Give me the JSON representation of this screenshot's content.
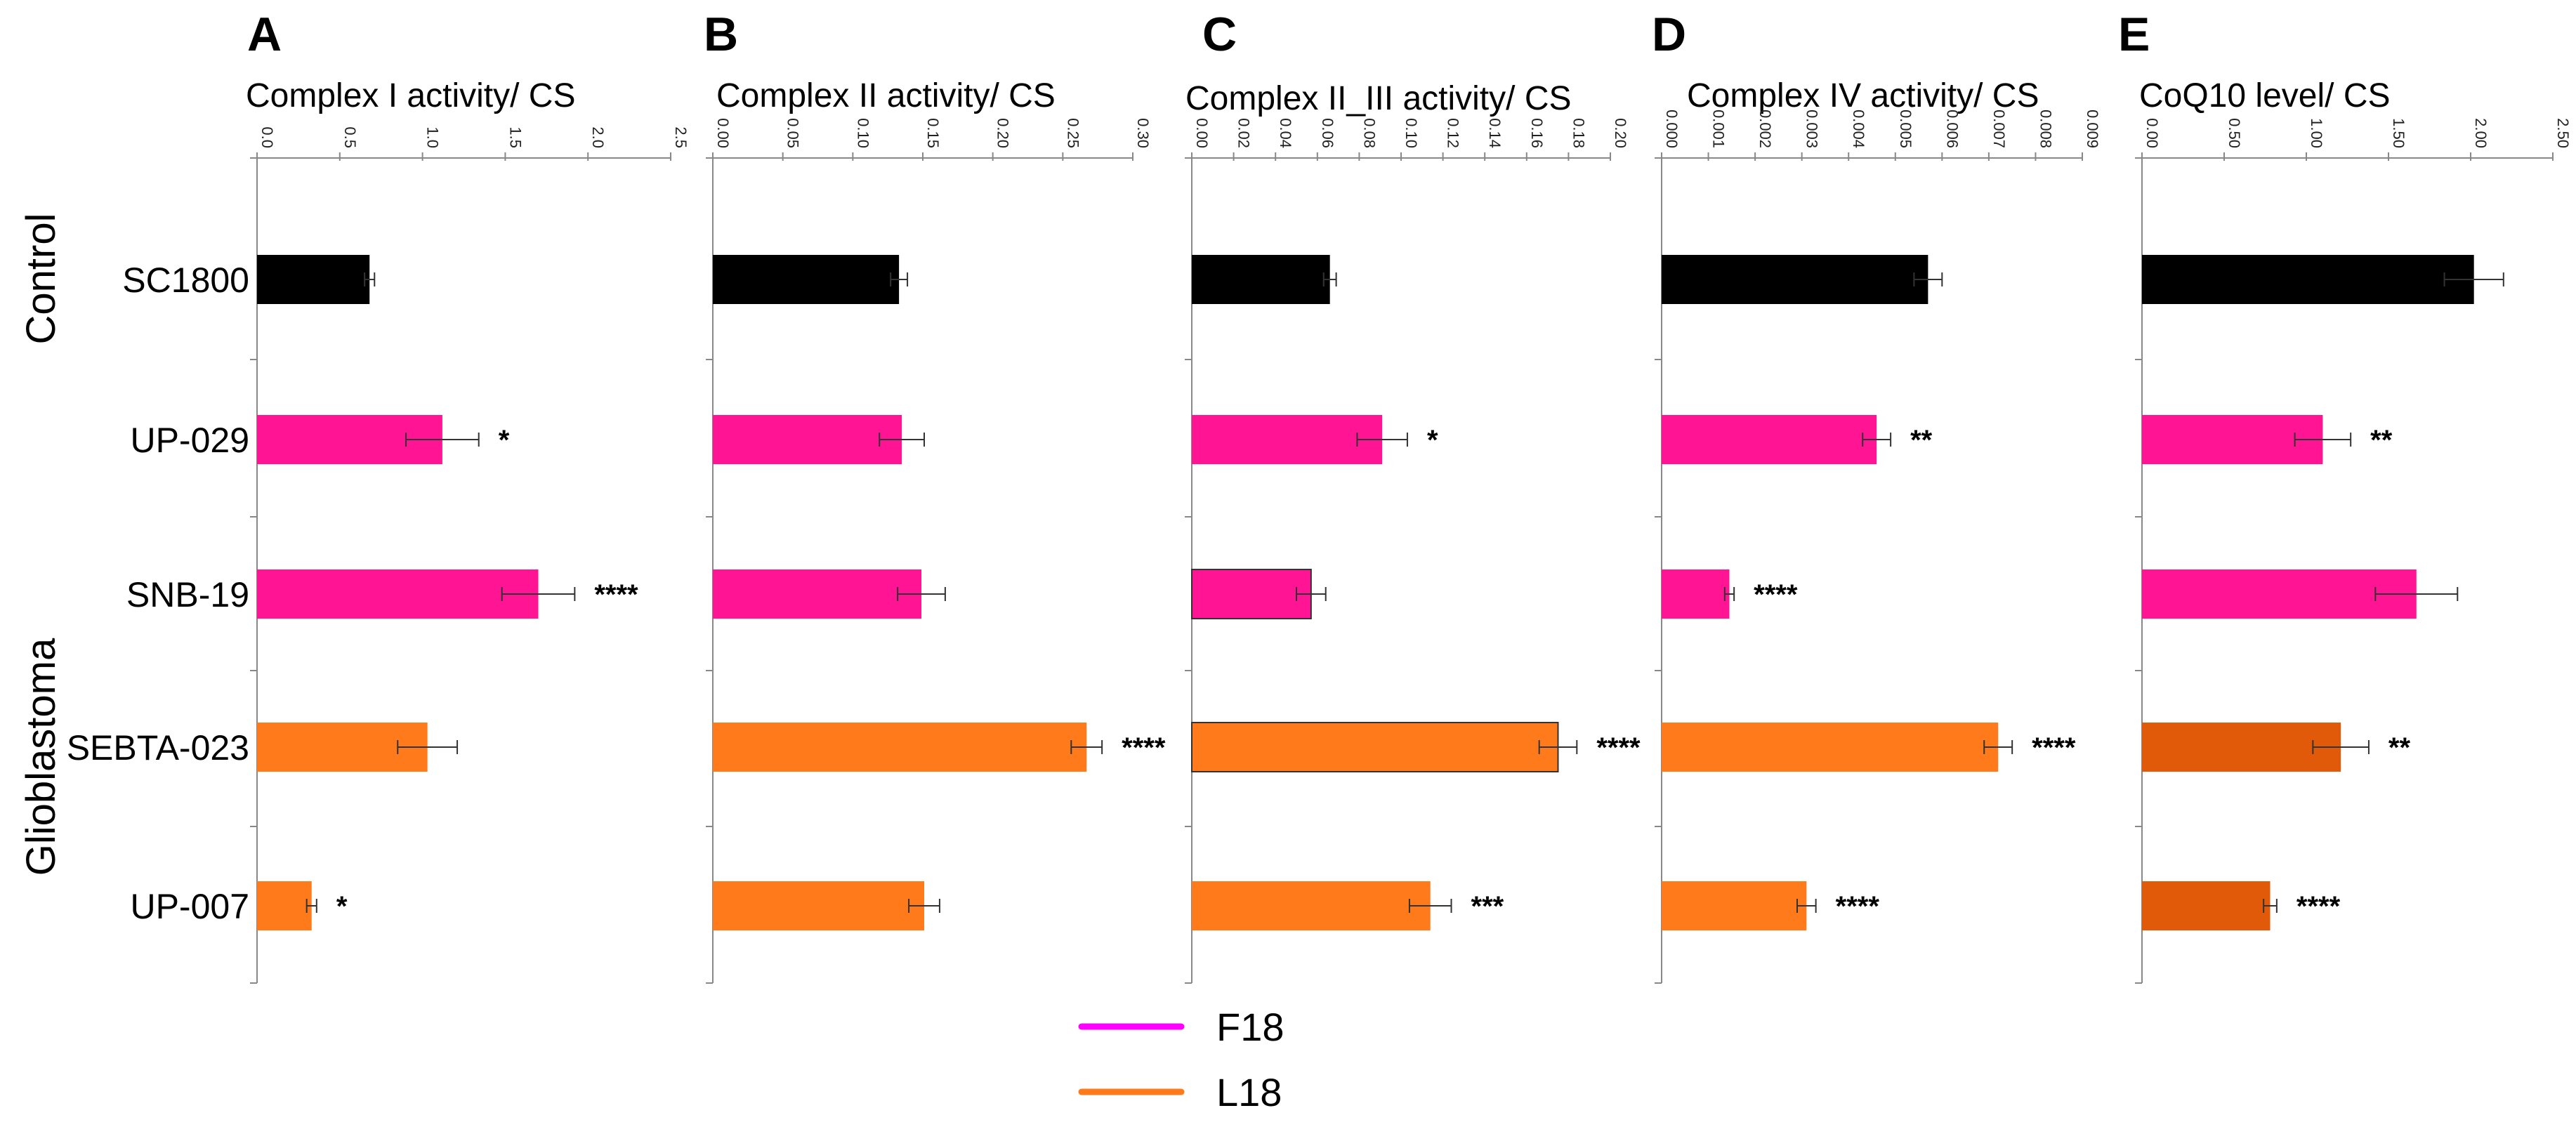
{
  "figure": {
    "group_labels": {
      "control": "Control",
      "glioblastoma": "Glioblastoma"
    },
    "legend": [
      {
        "label": "F18",
        "color": "#ff00ff"
      },
      {
        "label": "L18",
        "color": "#ff7a1a"
      }
    ]
  },
  "chart_data": [
    {
      "type": "bar",
      "orientation": "horizontal",
      "panel": "A",
      "title": "Complex I activity/ CS",
      "categories": [
        "SC1800",
        "UP-029",
        "SNB-19",
        "SEBTA-023",
        "UP-007"
      ],
      "values": [
        0.68,
        1.12,
        1.7,
        1.03,
        0.33
      ],
      "errors": [
        0.03,
        0.22,
        0.22,
        0.18,
        0.03
      ],
      "significance": [
        "",
        "*",
        "****",
        "",
        "*"
      ],
      "colors": [
        "#000000",
        "#ff1493",
        "#ff1493",
        "#ff7a1a",
        "#ff7a1a"
      ],
      "xlim": [
        0,
        2.5
      ],
      "ticks": [
        0,
        0.5,
        1.0,
        1.5,
        2.0,
        2.5
      ],
      "tick_labels": [
        "0.0",
        "0.5",
        "1.0",
        "1.5",
        "2.0",
        "2.5"
      ]
    },
    {
      "type": "bar",
      "orientation": "horizontal",
      "panel": "B",
      "title": "Complex II activity/ CS",
      "categories": [
        "SC1800",
        "UP-029",
        "SNB-19",
        "SEBTA-023",
        "UP-007"
      ],
      "values": [
        0.133,
        0.135,
        0.149,
        0.267,
        0.151
      ],
      "errors": [
        0.006,
        0.016,
        0.017,
        0.011,
        0.011
      ],
      "significance": [
        "",
        "",
        "",
        "****",
        ""
      ],
      "colors": [
        "#000000",
        "#ff1493",
        "#ff1493",
        "#ff7a1a",
        "#ff7a1a"
      ],
      "xlim": [
        0,
        0.3
      ],
      "ticks": [
        0,
        0.05,
        0.1,
        0.15,
        0.2,
        0.25,
        0.3
      ],
      "tick_labels": [
        "0.00",
        "0.05",
        "0.10",
        "0.15",
        "0.20",
        "0.25",
        "0.30"
      ]
    },
    {
      "type": "bar",
      "orientation": "horizontal",
      "panel": "C",
      "title": "Complex II_III activity/ CS",
      "categories": [
        "SC1800",
        "UP-029",
        "SNB-19",
        "SEBTA-023",
        "UP-007"
      ],
      "values": [
        0.066,
        0.091,
        0.057,
        0.175,
        0.114
      ],
      "errors": [
        0.003,
        0.012,
        0.007,
        0.009,
        0.01
      ],
      "significance": [
        "",
        "*",
        "",
        "****",
        "***"
      ],
      "colors": [
        "#000000",
        "#ff1493",
        "#ff1493",
        "#ff7a1a",
        "#ff7a1a"
      ],
      "xlim": [
        0,
        0.2
      ],
      "ticks": [
        0,
        0.02,
        0.04,
        0.06,
        0.08,
        0.1,
        0.12,
        0.14,
        0.16,
        0.18,
        0.2
      ],
      "tick_labels": [
        "0.00",
        "0.02",
        "0.04",
        "0.06",
        "0.08",
        "0.10",
        "0.12",
        "0.14",
        "0.16",
        "0.18",
        "0.20"
      ]
    },
    {
      "type": "bar",
      "orientation": "horizontal",
      "panel": "D",
      "title": "Complex IV activity/ CS",
      "categories": [
        "SC1800",
        "UP-029",
        "SNB-19",
        "SEBTA-023",
        "UP-007"
      ],
      "values": [
        0.0057,
        0.0046,
        0.00145,
        0.0072,
        0.0031
      ],
      "errors": [
        0.0003,
        0.0003,
        0.0001,
        0.0003,
        0.0002
      ],
      "significance": [
        "",
        "**",
        "****",
        "****",
        "****"
      ],
      "colors": [
        "#000000",
        "#ff1493",
        "#ff1493",
        "#ff7a1a",
        "#ff7a1a"
      ],
      "xlim": [
        0,
        0.009
      ],
      "ticks": [
        0,
        0.001,
        0.002,
        0.003,
        0.004,
        0.005,
        0.006,
        0.007,
        0.008,
        0.009
      ],
      "tick_labels": [
        "0.000",
        "0.001",
        "0.002",
        "0.003",
        "0.004",
        "0.005",
        "0.006",
        "0.007",
        "0.008",
        "0.009"
      ]
    },
    {
      "type": "bar",
      "orientation": "horizontal",
      "panel": "E",
      "title": "CoQ10 level/ CS",
      "categories": [
        "SC1800",
        "UP-029",
        "SNB-19",
        "SEBTA-023",
        "UP-007"
      ],
      "values": [
        2.02,
        1.1,
        1.67,
        1.21,
        0.78
      ],
      "errors": [
        0.18,
        0.17,
        0.25,
        0.17,
        0.04
      ],
      "significance": [
        "",
        "**",
        "",
        "**",
        "****"
      ],
      "colors": [
        "#000000",
        "#ff1493",
        "#ff1493",
        "#e05a0a",
        "#e05a0a"
      ],
      "xlim": [
        0,
        2.5
      ],
      "ticks": [
        0,
        0.5,
        1.0,
        1.5,
        2.0,
        2.5
      ],
      "tick_labels": [
        "0.00",
        "0.50",
        "1.00",
        "1.50",
        "2.00",
        "2.50"
      ]
    }
  ]
}
